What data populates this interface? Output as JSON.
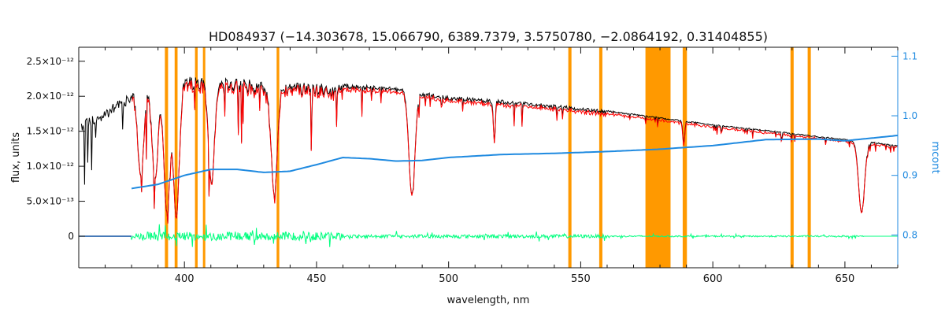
{
  "chart_data": {
    "type": "line",
    "title": "HD084937   (−14.303678, 15.066790, 6389.7379, 3.5750780, −2.0864192, 0.31404855)",
    "xlabel": "wavelength, nm",
    "ylabel": "flux, units",
    "y2label": "mcont",
    "xlim": [
      360,
      670
    ],
    "ylim": [
      -4.5e-13,
      2.7e-12
    ],
    "y2lim": [
      0.745,
      1.115
    ],
    "x_ticks": [
      400,
      450,
      500,
      550,
      600,
      650
    ],
    "x_tick_labels": [
      "400",
      "450",
      "500",
      "550",
      "600",
      "650"
    ],
    "y_ticks": [
      0,
      5e-13,
      1e-12,
      1.5e-12,
      2e-12,
      2.5e-12
    ],
    "y_tick_labels": [
      "0",
      "5.0×10⁻¹³",
      "1.0×10⁻¹²",
      "1.5×10⁻¹²",
      "2.0×10⁻¹²",
      "2.5×10⁻¹²"
    ],
    "y2_ticks": [
      0.8,
      0.9,
      1.0,
      1.1
    ],
    "y2_tick_labels": [
      "0.8",
      "0.9",
      "1.0",
      "1.1"
    ],
    "grid": false,
    "colors": {
      "observed": "#000000",
      "model": "#ff0000",
      "residual": "#00ff7f",
      "continuum": "#1f8ae0",
      "mask": "#ff9900",
      "axis": "#111111",
      "right_axis": "#1f8ae0"
    },
    "continuum_anchor_points": [
      [
        380,
        0.878
      ],
      [
        390,
        0.885
      ],
      [
        400,
        0.9
      ],
      [
        410,
        0.91
      ],
      [
        420,
        0.91
      ],
      [
        430,
        0.905
      ],
      [
        440,
        0.907
      ],
      [
        450,
        0.918
      ],
      [
        460,
        0.93
      ],
      [
        470,
        0.928
      ],
      [
        480,
        0.924
      ],
      [
        490,
        0.925
      ],
      [
        500,
        0.93
      ],
      [
        520,
        0.935
      ],
      [
        540,
        0.937
      ],
      [
        560,
        0.94
      ],
      [
        580,
        0.944
      ],
      [
        600,
        0.95
      ],
      [
        620,
        0.96
      ],
      [
        640,
        0.961
      ],
      [
        650,
        0.958
      ],
      [
        670,
        0.967
      ]
    ],
    "envelope_anchor_points": [
      [
        361,
        1.65e-12
      ],
      [
        370,
        1.8e-12
      ],
      [
        380,
        2.1e-12
      ],
      [
        390,
        2.25e-12
      ],
      [
        400,
        2.3e-12
      ],
      [
        410,
        2.28e-12
      ],
      [
        420,
        2.25e-12
      ],
      [
        440,
        2.2e-12
      ],
      [
        460,
        2.18e-12
      ],
      [
        480,
        2.13e-12
      ],
      [
        500,
        2e-12
      ],
      [
        520,
        1.95e-12
      ],
      [
        540,
        1.88e-12
      ],
      [
        560,
        1.8e-12
      ],
      [
        580,
        1.7e-12
      ],
      [
        600,
        1.6e-12
      ],
      [
        620,
        1.52e-12
      ],
      [
        640,
        1.43e-12
      ],
      [
        660,
        1.35e-12
      ],
      [
        670,
        1.3e-12
      ]
    ],
    "absorption_lines": [
      {
        "wl": 383.5,
        "depth": 0.58
      },
      {
        "wl": 388.9,
        "depth": 0.62
      },
      {
        "wl": 393.4,
        "depth": 0.85
      },
      {
        "wl": 396.9,
        "depth": 0.88
      },
      {
        "wl": 410.2,
        "depth": 0.66
      },
      {
        "wl": 434.0,
        "depth": 0.72
      },
      {
        "wl": 486.1,
        "depth": 0.71
      },
      {
        "wl": 517.3,
        "depth": 0.3
      },
      {
        "wl": 589.0,
        "depth": 0.2
      },
      {
        "wl": 656.3,
        "depth": 0.75
      }
    ],
    "masked_regions": [
      [
        392.6,
        393.8
      ],
      [
        396.3,
        397.4
      ],
      [
        404.0,
        405.0
      ],
      [
        407.0,
        407.9
      ],
      [
        434.9,
        435.9
      ],
      [
        545.3,
        546.5
      ],
      [
        557.0,
        558.2
      ],
      [
        574.5,
        584.0
      ],
      [
        588.6,
        590.2
      ],
      [
        629.4,
        630.6
      ],
      [
        635.9,
        637.1
      ]
    ],
    "residual_range": [
      380,
      657
    ]
  }
}
